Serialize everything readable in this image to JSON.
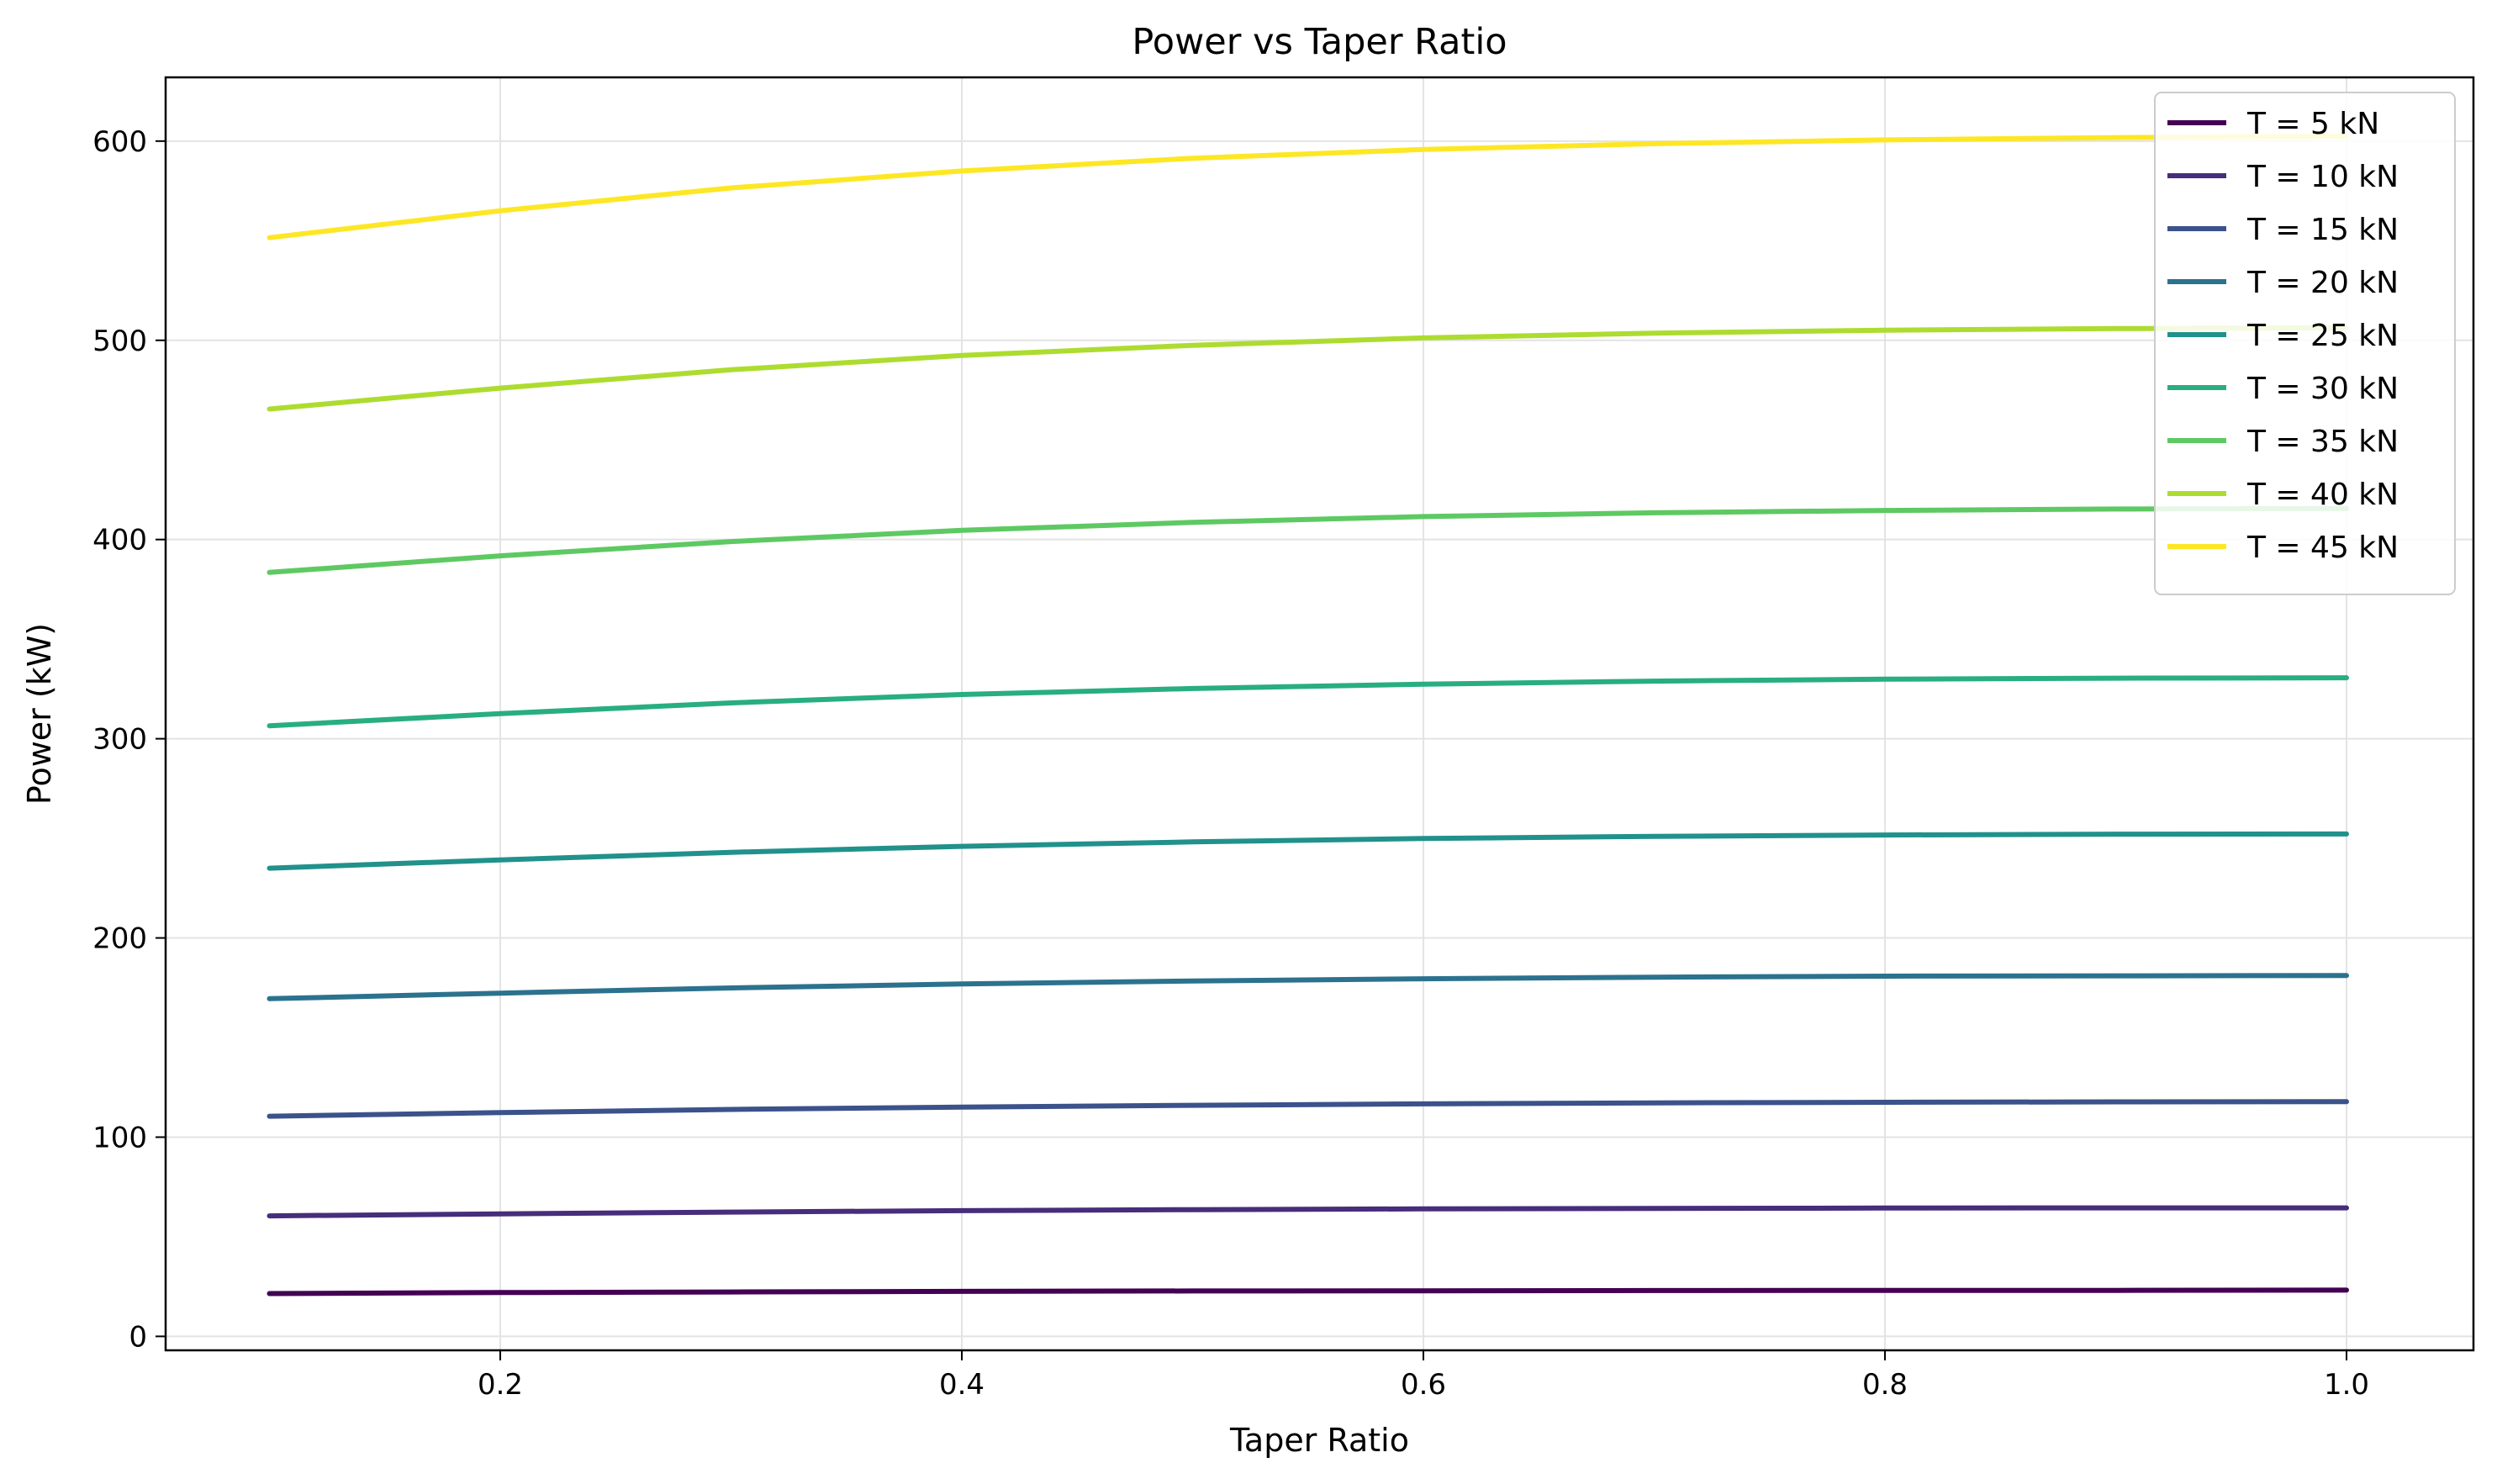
{
  "chart_data": {
    "type": "line",
    "title": "Power vs Taper Ratio",
    "xlabel": "Taper Ratio",
    "ylabel": "Power (kW)",
    "xlim": [
      0.055,
      1.055
    ],
    "ylim": [
      -7,
      632
    ],
    "xticks": [
      0.2,
      0.4,
      0.6,
      0.8,
      1.0
    ],
    "xtick_labels": [
      "0.2",
      "0.4",
      "0.6",
      "0.8",
      "1.0"
    ],
    "yticks": [
      0,
      100,
      200,
      300,
      400,
      500,
      600
    ],
    "ytick_labels": [
      "0",
      "100",
      "200",
      "300",
      "400",
      "500",
      "600"
    ],
    "grid": true,
    "legend_position": "top-right",
    "x": [
      0.1,
      0.2,
      0.3,
      0.4,
      0.5,
      0.6,
      0.7,
      0.8,
      0.9,
      1.0
    ],
    "series": [
      {
        "name": "T = 5 kN",
        "color": "#440154",
        "values": [
          21.5,
          22.0,
          22.3,
          22.6,
          22.8,
          22.9,
          23.0,
          23.1,
          23.1,
          23.2
        ]
      },
      {
        "name": "T = 10 kN",
        "color": "#472d7b",
        "values": [
          60.5,
          61.5,
          62.4,
          63.1,
          63.6,
          64.0,
          64.2,
          64.4,
          64.5,
          64.5
        ]
      },
      {
        "name": "T = 15 kN",
        "color": "#3b528b",
        "values": [
          110.5,
          112.3,
          113.9,
          115.1,
          116.0,
          116.7,
          117.2,
          117.5,
          117.7,
          117.8
        ]
      },
      {
        "name": "T = 20 kN",
        "color": "#2c728e",
        "values": [
          169.5,
          172.3,
          174.9,
          176.9,
          178.4,
          179.5,
          180.3,
          180.8,
          181.0,
          181.1
        ]
      },
      {
        "name": "T = 25 kN",
        "color": "#21918c",
        "values": [
          235.0,
          239.2,
          243.0,
          246.0,
          248.2,
          249.9,
          251.0,
          251.7,
          252.1,
          252.2
        ]
      },
      {
        "name": "T = 30 kN",
        "color": "#28ae80",
        "values": [
          306.5,
          312.6,
          318.0,
          322.2,
          325.2,
          327.4,
          328.9,
          329.9,
          330.4,
          330.6
        ]
      },
      {
        "name": "T = 35 kN",
        "color": "#5ec962",
        "values": [
          383.5,
          391.8,
          399.0,
          404.6,
          408.6,
          411.5,
          413.4,
          414.6,
          415.3,
          415.6
        ]
      },
      {
        "name": "T = 40 kN",
        "color": "#addc30",
        "values": [
          465.5,
          476.0,
          485.2,
          492.4,
          497.5,
          501.2,
          503.6,
          505.1,
          505.9,
          506.3
        ]
      },
      {
        "name": "T = 45 kN",
        "color": "#fde725",
        "values": [
          551.5,
          565.0,
          576.5,
          585.0,
          591.4,
          595.8,
          598.7,
          600.6,
          601.8,
          602.5
        ]
      }
    ]
  }
}
